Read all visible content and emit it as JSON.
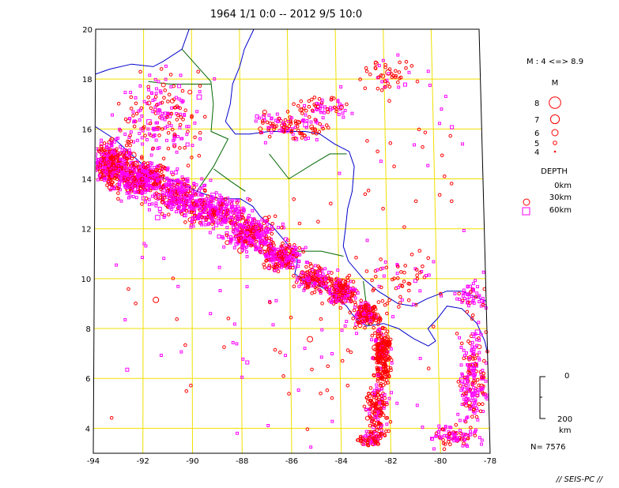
{
  "title": "1964 1/1 0:0 -- 2012 9/5 10:0",
  "map": {
    "lon_range": [
      -94,
      -78
    ],
    "lat_range": [
      3,
      20
    ],
    "lon_ticks": [
      {
        "value": -94,
        "label": "-94"
      },
      {
        "value": -92,
        "label": "-92"
      },
      {
        "value": -90,
        "label": "-90"
      },
      {
        "value": -88,
        "label": "-88"
      },
      {
        "value": -86,
        "label": "-86"
      },
      {
        "value": -84,
        "label": "-84"
      },
      {
        "value": -82,
        "label": "-82"
      },
      {
        "value": -80,
        "label": "-80"
      },
      {
        "value": -78,
        "label": "-78"
      }
    ],
    "lat_ticks": [
      {
        "value": 4,
        "label": "4"
      },
      {
        "value": 6,
        "label": "6"
      },
      {
        "value": 8,
        "label": "8"
      },
      {
        "value": 10,
        "label": "10"
      },
      {
        "value": 12,
        "label": "12"
      },
      {
        "value": 14,
        "label": "14"
      },
      {
        "value": 16,
        "label": "16"
      },
      {
        "value": 18,
        "label": "18"
      },
      {
        "value": 20,
        "label": "20"
      }
    ],
    "grid": true,
    "colors": {
      "grid": "#f0e000",
      "coast": "#0000cc",
      "border": "#006600",
      "shallow": "#ff0000",
      "intermediate": "#ff00ff",
      "frame": "#000000"
    },
    "coastline": [
      [
        [
          -90.1,
          20.0
        ],
        [
          -90.4,
          19.2
        ],
        [
          -91.2,
          18.7
        ],
        [
          -91.6,
          18.5
        ],
        [
          -92.5,
          18.6
        ],
        [
          -93.4,
          18.4
        ],
        [
          -94.0,
          18.2
        ]
      ],
      [
        [
          -87.4,
          20.0
        ],
        [
          -87.8,
          19.2
        ],
        [
          -88.0,
          18.5
        ],
        [
          -88.3,
          17.8
        ],
        [
          -88.4,
          17.0
        ],
        [
          -88.6,
          16.3
        ],
        [
          -88.2,
          15.8
        ],
        [
          -87.6,
          15.8
        ],
        [
          -86.8,
          15.9
        ],
        [
          -86.0,
          15.9
        ],
        [
          -85.3,
          15.9
        ],
        [
          -84.7,
          15.8
        ],
        [
          -84.1,
          15.4
        ],
        [
          -83.5,
          15.1
        ],
        [
          -83.3,
          14.5
        ],
        [
          -83.4,
          13.5
        ],
        [
          -83.6,
          12.8
        ],
        [
          -83.7,
          12.0
        ],
        [
          -83.8,
          11.3
        ],
        [
          -83.6,
          10.7
        ],
        [
          -83.0,
          10.0
        ],
        [
          -82.4,
          9.5
        ],
        [
          -81.6,
          9.0
        ],
        [
          -81.0,
          8.9
        ],
        [
          -80.4,
          9.2
        ],
        [
          -79.6,
          9.5
        ],
        [
          -79.0,
          9.5
        ],
        [
          -78.0,
          9.1
        ]
      ],
      [
        [
          -94.0,
          16.1
        ],
        [
          -93.2,
          15.6
        ],
        [
          -92.4,
          14.9
        ],
        [
          -91.5,
          14.1
        ],
        [
          -90.6,
          13.9
        ],
        [
          -89.8,
          13.5
        ],
        [
          -88.9,
          13.2
        ],
        [
          -88.0,
          13.2
        ],
        [
          -87.5,
          12.9
        ],
        [
          -87.2,
          12.5
        ],
        [
          -86.7,
          12.1
        ],
        [
          -86.1,
          11.4
        ],
        [
          -85.7,
          11.0
        ],
        [
          -85.7,
          10.6
        ],
        [
          -85.8,
          10.2
        ],
        [
          -85.4,
          9.9
        ],
        [
          -85.0,
          9.8
        ],
        [
          -84.6,
          9.6
        ],
        [
          -84.2,
          9.3
        ],
        [
          -83.7,
          8.9
        ],
        [
          -83.5,
          8.6
        ],
        [
          -83.2,
          8.3
        ],
        [
          -82.9,
          8.1
        ],
        [
          -82.2,
          8.2
        ],
        [
          -81.6,
          8.0
        ],
        [
          -81.0,
          7.6
        ],
        [
          -80.4,
          7.3
        ],
        [
          -80.1,
          7.5
        ],
        [
          -80.4,
          8.0
        ],
        [
          -80.0,
          8.4
        ],
        [
          -79.6,
          8.9
        ],
        [
          -79.0,
          8.8
        ],
        [
          -78.4,
          8.2
        ],
        [
          -78.1,
          7.5
        ],
        [
          -78.0,
          7.0
        ]
      ]
    ],
    "borders": [
      [
        [
          -90.4,
          19.2
        ],
        [
          -89.2,
          17.9
        ],
        [
          -89.1,
          17.0
        ],
        [
          -89.2,
          15.9
        ],
        [
          -88.5,
          15.6
        ],
        [
          -89.1,
          14.5
        ],
        [
          -89.8,
          13.5
        ]
      ],
      [
        [
          -91.8,
          17.9
        ],
        [
          -90.9,
          17.8
        ],
        [
          -89.2,
          17.8
        ]
      ],
      [
        [
          -89.1,
          14.4
        ],
        [
          -88.4,
          13.9
        ],
        [
          -87.8,
          13.5
        ]
      ],
      [
        [
          -86.8,
          15.0
        ],
        [
          -86.0,
          14.0
        ],
        [
          -85.0,
          14.6
        ],
        [
          -84.3,
          15.0
        ],
        [
          -83.6,
          15.0
        ]
      ],
      [
        [
          -85.7,
          11.1
        ],
        [
          -84.7,
          11.1
        ],
        [
          -83.8,
          10.9
        ]
      ],
      [
        [
          -83.0,
          9.9
        ],
        [
          -82.9,
          9.0
        ],
        [
          -82.8,
          8.1
        ]
      ]
    ],
    "swarms": [
      {
        "cx": -93.3,
        "cy": 14.6,
        "sx": 0.6,
        "sy": 0.6,
        "n": 420,
        "shallow": 0.5
      },
      {
        "cx": -92.0,
        "cy": 14.0,
        "sx": 0.8,
        "sy": 0.5,
        "n": 420,
        "shallow": 0.35
      },
      {
        "cx": -90.5,
        "cy": 13.3,
        "sx": 0.8,
        "sy": 0.5,
        "n": 280,
        "shallow": 0.3
      },
      {
        "cx": -89.0,
        "cy": 12.7,
        "sx": 0.8,
        "sy": 0.45,
        "n": 280,
        "shallow": 0.3
      },
      {
        "cx": -87.6,
        "cy": 11.8,
        "sx": 0.7,
        "sy": 0.45,
        "n": 300,
        "shallow": 0.35
      },
      {
        "cx": -86.3,
        "cy": 10.9,
        "sx": 0.6,
        "sy": 0.4,
        "n": 220,
        "shallow": 0.4
      },
      {
        "cx": -85.0,
        "cy": 10.0,
        "sx": 0.5,
        "sy": 0.35,
        "n": 160,
        "shallow": 0.55
      },
      {
        "cx": -83.9,
        "cy": 9.5,
        "sx": 0.4,
        "sy": 0.35,
        "n": 180,
        "shallow": 0.7
      },
      {
        "cx": -82.9,
        "cy": 8.6,
        "sx": 0.35,
        "sy": 0.3,
        "n": 160,
        "shallow": 0.7
      },
      {
        "cx": -82.3,
        "cy": 7.0,
        "sx": 0.25,
        "sy": 0.8,
        "n": 240,
        "shallow": 0.85
      },
      {
        "cx": -82.5,
        "cy": 4.8,
        "sx": 0.3,
        "sy": 0.7,
        "n": 150,
        "shallow": 0.75
      },
      {
        "cx": -82.8,
        "cy": 3.6,
        "sx": 0.35,
        "sy": 0.2,
        "n": 80,
        "shallow": 0.7
      },
      {
        "cx": -78.6,
        "cy": 6.0,
        "sx": 0.4,
        "sy": 1.5,
        "n": 200,
        "shallow": 0.3
      },
      {
        "cx": -79.6,
        "cy": 3.7,
        "sx": 0.6,
        "sy": 0.3,
        "n": 80,
        "shallow": 0.3
      },
      {
        "cx": -78.5,
        "cy": 9.3,
        "sx": 0.5,
        "sy": 0.4,
        "n": 60,
        "shallow": 0.3
      },
      {
        "cx": -85.9,
        "cy": 16.1,
        "sx": 1.0,
        "sy": 0.35,
        "n": 110,
        "shallow": 0.55
      },
      {
        "cx": -84.5,
        "cy": 16.9,
        "sx": 0.8,
        "sy": 0.3,
        "n": 60,
        "shallow": 0.55
      },
      {
        "cx": -82.0,
        "cy": 18.2,
        "sx": 0.8,
        "sy": 0.5,
        "n": 45,
        "shallow": 0.75
      },
      {
        "cx": -91.2,
        "cy": 16.5,
        "sx": 1.2,
        "sy": 1.2,
        "n": 200,
        "shallow": 0.4
      },
      {
        "cx": -86.0,
        "cy": 8.0,
        "sx": 5.0,
        "sy": 4.0,
        "n": 120,
        "shallow": 0.5
      },
      {
        "cx": -80.0,
        "cy": 15.0,
        "sx": 3.0,
        "sy": 3.0,
        "n": 40,
        "shallow": 0.7
      },
      {
        "cx": -81.5,
        "cy": 10.0,
        "sx": 1.0,
        "sy": 1.0,
        "n": 60,
        "shallow": 0.6
      }
    ]
  },
  "legend": {
    "magnitude_range": "M : 4 <=> 8.9",
    "magnitude_title": "M",
    "magnitudes": [
      {
        "label": "8",
        "value": 8
      },
      {
        "label": "7",
        "value": 7
      },
      {
        "label": "6",
        "value": 6
      },
      {
        "label": "5",
        "value": 5
      },
      {
        "label": "4",
        "value": 4
      }
    ],
    "depth_title": "DEPTH",
    "depths": [
      {
        "label": "0km",
        "symbol": "none"
      },
      {
        "label": "30km",
        "symbol": "circle"
      },
      {
        "label": "60km",
        "symbol": "square"
      }
    ],
    "scale_top": "0",
    "scale_bottom": "200",
    "scale_unit": "km",
    "count": "N= 7576"
  },
  "footer": "// SEIS-PC //"
}
